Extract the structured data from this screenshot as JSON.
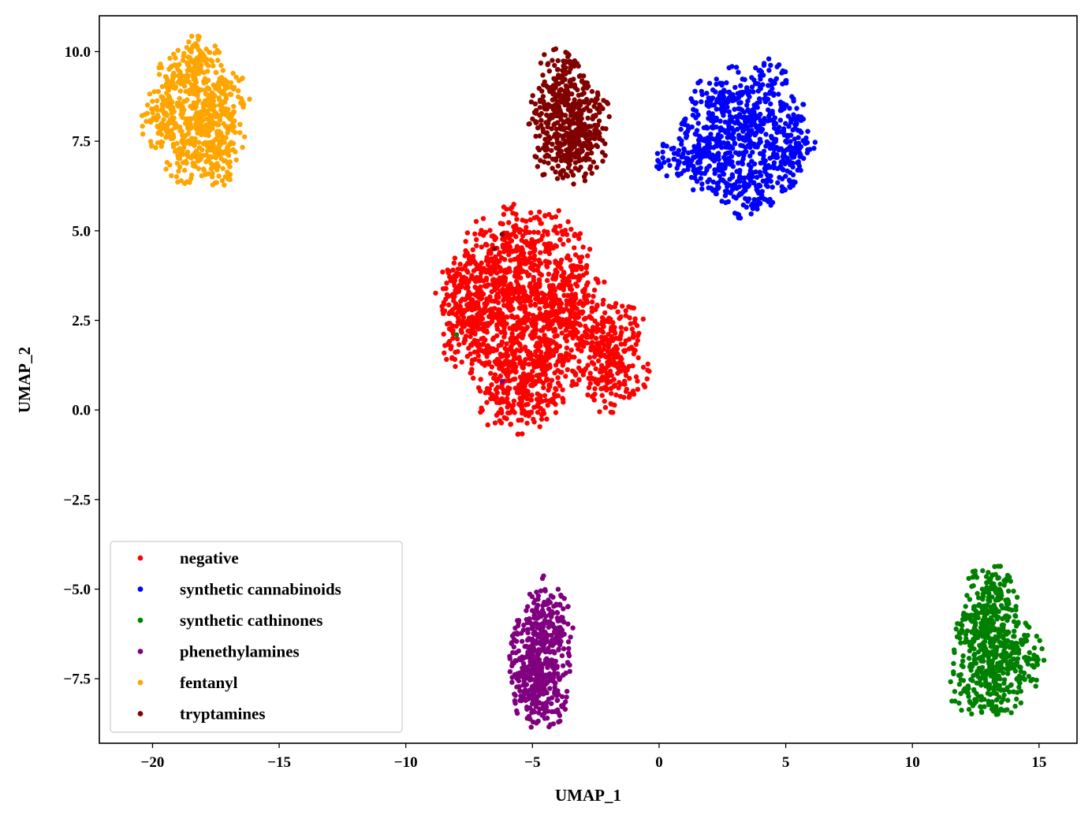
{
  "chart_data": {
    "type": "scatter",
    "title": "",
    "xlabel": "UMAP_1",
    "ylabel": "UMAP_2",
    "xlim": [
      -22.1,
      16.5
    ],
    "ylim": [
      -9.3,
      11.0
    ],
    "xticks": [
      -20,
      -15,
      -10,
      -5,
      0,
      5,
      10,
      15
    ],
    "xtick_labels": [
      "−20",
      "−15",
      "−10",
      "−5",
      "0",
      "5",
      "10",
      "15"
    ],
    "yticks": [
      -7.5,
      -5.0,
      -2.5,
      0.0,
      2.5,
      5.0,
      7.5,
      10.0
    ],
    "ytick_labels": [
      "−7.5",
      "−5.0",
      "−2.5",
      "0.0",
      "2.5",
      "5.0",
      "7.5",
      "10.0"
    ],
    "grid": false,
    "legend_position": "lower-left",
    "series": [
      {
        "name": "negative",
        "color": "#ff0000",
        "points": [
          [
            -5.8,
            2.6
          ],
          [
            -6.4,
            3.4
          ],
          [
            -5.0,
            2.0
          ],
          [
            -4.6,
            3.1
          ],
          [
            -6.9,
            2.2
          ],
          [
            -5.5,
            1.3
          ],
          [
            -4.2,
            1.9
          ],
          [
            -6.1,
            4.2
          ],
          [
            -5.2,
            4.6
          ],
          [
            -3.8,
            3.6
          ],
          [
            -7.2,
            3.0
          ],
          [
            -6.6,
            1.2
          ],
          [
            -5.9,
            0.6
          ],
          [
            -4.9,
            0.8
          ],
          [
            -4.0,
            1.1
          ],
          [
            -3.5,
            2.6
          ],
          [
            -7.6,
            3.6
          ],
          [
            -7.4,
            2.4
          ],
          [
            -6.8,
            4.6
          ],
          [
            -5.7,
            5.0
          ],
          [
            -4.4,
            4.9
          ],
          [
            -3.6,
            4.3
          ],
          [
            -3.0,
            3.3
          ],
          [
            -2.7,
            2.2
          ],
          [
            -2.3,
            1.5
          ],
          [
            -1.7,
            2.0
          ],
          [
            -1.3,
            1.1
          ],
          [
            -1.9,
            0.6
          ],
          [
            -1.5,
            2.3
          ],
          [
            -2.1,
            0.9
          ],
          [
            -7.9,
            2.9
          ],
          [
            -8.0,
            3.4
          ],
          [
            -7.7,
            1.9
          ],
          [
            -6.3,
            0.2
          ],
          [
            -5.4,
            0.0
          ],
          [
            -4.7,
            0.4
          ],
          [
            -3.2,
            1.7
          ],
          [
            -5.6,
            3.7
          ],
          [
            -6.0,
            2.9
          ],
          [
            -4.8,
            3.9
          ],
          [
            -6.2,
            1.9
          ],
          [
            -5.3,
            2.9
          ],
          [
            -4.4,
            2.5
          ],
          [
            -3.9,
            2.8
          ],
          [
            -7.0,
            3.9
          ],
          [
            -5.1,
            1.6
          ]
        ]
      },
      {
        "name": "synthetic cannabinoids",
        "color": "#0000ff",
        "points": [
          [
            3.3,
            7.6
          ],
          [
            2.5,
            8.3
          ],
          [
            4.2,
            8.6
          ],
          [
            3.6,
            6.6
          ],
          [
            2.1,
            7.0
          ],
          [
            4.7,
            7.3
          ],
          [
            1.5,
            7.8
          ],
          [
            5.1,
            8.2
          ],
          [
            3.0,
            9.0
          ],
          [
            4.4,
            9.2
          ],
          [
            2.7,
            6.3
          ],
          [
            3.9,
            6.1
          ],
          [
            1.3,
            7.2
          ],
          [
            5.5,
            7.6
          ],
          [
            2.0,
            8.7
          ],
          [
            4.9,
            6.7
          ],
          [
            3.5,
            7.9
          ],
          [
            2.9,
            7.3
          ],
          [
            4.0,
            7.8
          ],
          [
            3.2,
            8.4
          ],
          [
            1.8,
            6.6
          ],
          [
            0.6,
            7.0
          ],
          [
            5.2,
            6.9
          ],
          [
            3.4,
            5.9
          ],
          [
            2.3,
            7.6
          ]
        ]
      },
      {
        "name": "synthetic cathinones",
        "color": "#008000",
        "points": [
          [
            13.1,
            -6.6
          ],
          [
            12.6,
            -5.8
          ],
          [
            13.6,
            -6.0
          ],
          [
            12.3,
            -7.1
          ],
          [
            13.9,
            -7.2
          ],
          [
            12.9,
            -7.7
          ],
          [
            13.4,
            -5.3
          ],
          [
            12.4,
            -6.4
          ],
          [
            14.2,
            -6.7
          ],
          [
            13.2,
            -7.9
          ],
          [
            12.8,
            -5.2
          ],
          [
            14.5,
            -7.0
          ],
          [
            12.2,
            -7.7
          ],
          [
            13.7,
            -7.8
          ],
          [
            13.0,
            -6.9
          ],
          [
            12.7,
            -6.2
          ],
          [
            13.5,
            -6.5
          ],
          [
            13.3,
            -5.1
          ],
          [
            -8.0,
            2.1
          ]
        ]
      },
      {
        "name": "phenethylamines",
        "color": "#800080",
        "points": [
          [
            -4.8,
            -6.8
          ],
          [
            -4.5,
            -6.2
          ],
          [
            -5.1,
            -7.3
          ],
          [
            -4.3,
            -5.7
          ],
          [
            -4.9,
            -7.8
          ],
          [
            -4.2,
            -7.0
          ],
          [
            -5.3,
            -6.6
          ],
          [
            -4.6,
            -7.5
          ],
          [
            -4.0,
            -6.4
          ],
          [
            -4.4,
            -5.4
          ],
          [
            -5.0,
            -8.0
          ],
          [
            -4.1,
            -7.9
          ],
          [
            -5.4,
            -7.2
          ],
          [
            -4.7,
            -6.0
          ],
          [
            -4.5,
            -8.3
          ],
          [
            -6.2,
            0.8
          ]
        ]
      },
      {
        "name": "fentanyl",
        "color": "#ffa500",
        "points": [
          [
            -18.2,
            8.3
          ],
          [
            -18.9,
            8.9
          ],
          [
            -17.5,
            8.0
          ],
          [
            -18.6,
            7.5
          ],
          [
            -17.8,
            9.2
          ],
          [
            -19.3,
            8.1
          ],
          [
            -17.2,
            8.6
          ],
          [
            -18.0,
            7.1
          ],
          [
            -19.0,
            9.5
          ],
          [
            -17.6,
            7.4
          ],
          [
            -18.4,
            9.7
          ],
          [
            -19.6,
            8.5
          ],
          [
            -16.9,
            8.8
          ],
          [
            -18.8,
            6.9
          ],
          [
            -17.4,
            6.8
          ],
          [
            -19.8,
            7.9
          ],
          [
            -17.1,
            7.6
          ],
          [
            -18.1,
            10.0
          ],
          [
            -18.7,
            8.0
          ],
          [
            -17.9,
            8.6
          ]
        ]
      },
      {
        "name": "tryptamines",
        "color": "#800000",
        "points": [
          [
            -3.6,
            8.1
          ],
          [
            -4.1,
            8.7
          ],
          [
            -3.2,
            7.7
          ],
          [
            -3.9,
            7.4
          ],
          [
            -3.0,
            8.6
          ],
          [
            -4.4,
            7.9
          ],
          [
            -3.5,
            9.2
          ],
          [
            -2.8,
            7.3
          ],
          [
            -4.2,
            7.0
          ],
          [
            -3.3,
            6.9
          ],
          [
            -4.5,
            8.4
          ],
          [
            -2.6,
            8.2
          ],
          [
            -3.7,
            8.8
          ],
          [
            -4.0,
            9.5
          ],
          [
            -3.4,
            7.5
          ],
          [
            -6.5,
            4.5
          ],
          [
            -6.2,
            4.9
          ]
        ]
      }
    ]
  }
}
